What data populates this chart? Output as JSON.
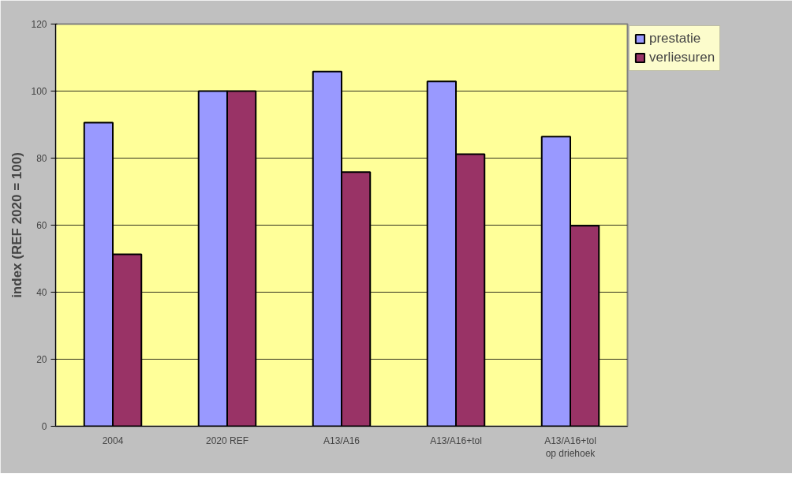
{
  "chart_data": {
    "type": "bar",
    "ylabel": "index (REF 2020 = 100)",
    "categories": [
      "2004",
      "2020 REF",
      "A13/A16",
      "A13/A16+tol",
      "A13/A16+tol\nop driehoek"
    ],
    "series": [
      {
        "name": "prestatie",
        "color": "#9999ff",
        "values": [
          90.6,
          100,
          105.8,
          102.9,
          86.4
        ]
      },
      {
        "name": "verliesuren",
        "color": "#993366",
        "values": [
          51.3,
          100,
          75.8,
          81.2,
          59.8
        ]
      }
    ],
    "ylim": [
      0,
      120
    ],
    "yticks": [
      0,
      20,
      40,
      60,
      80,
      100,
      120
    ],
    "grid": "y",
    "legend": "right"
  }
}
